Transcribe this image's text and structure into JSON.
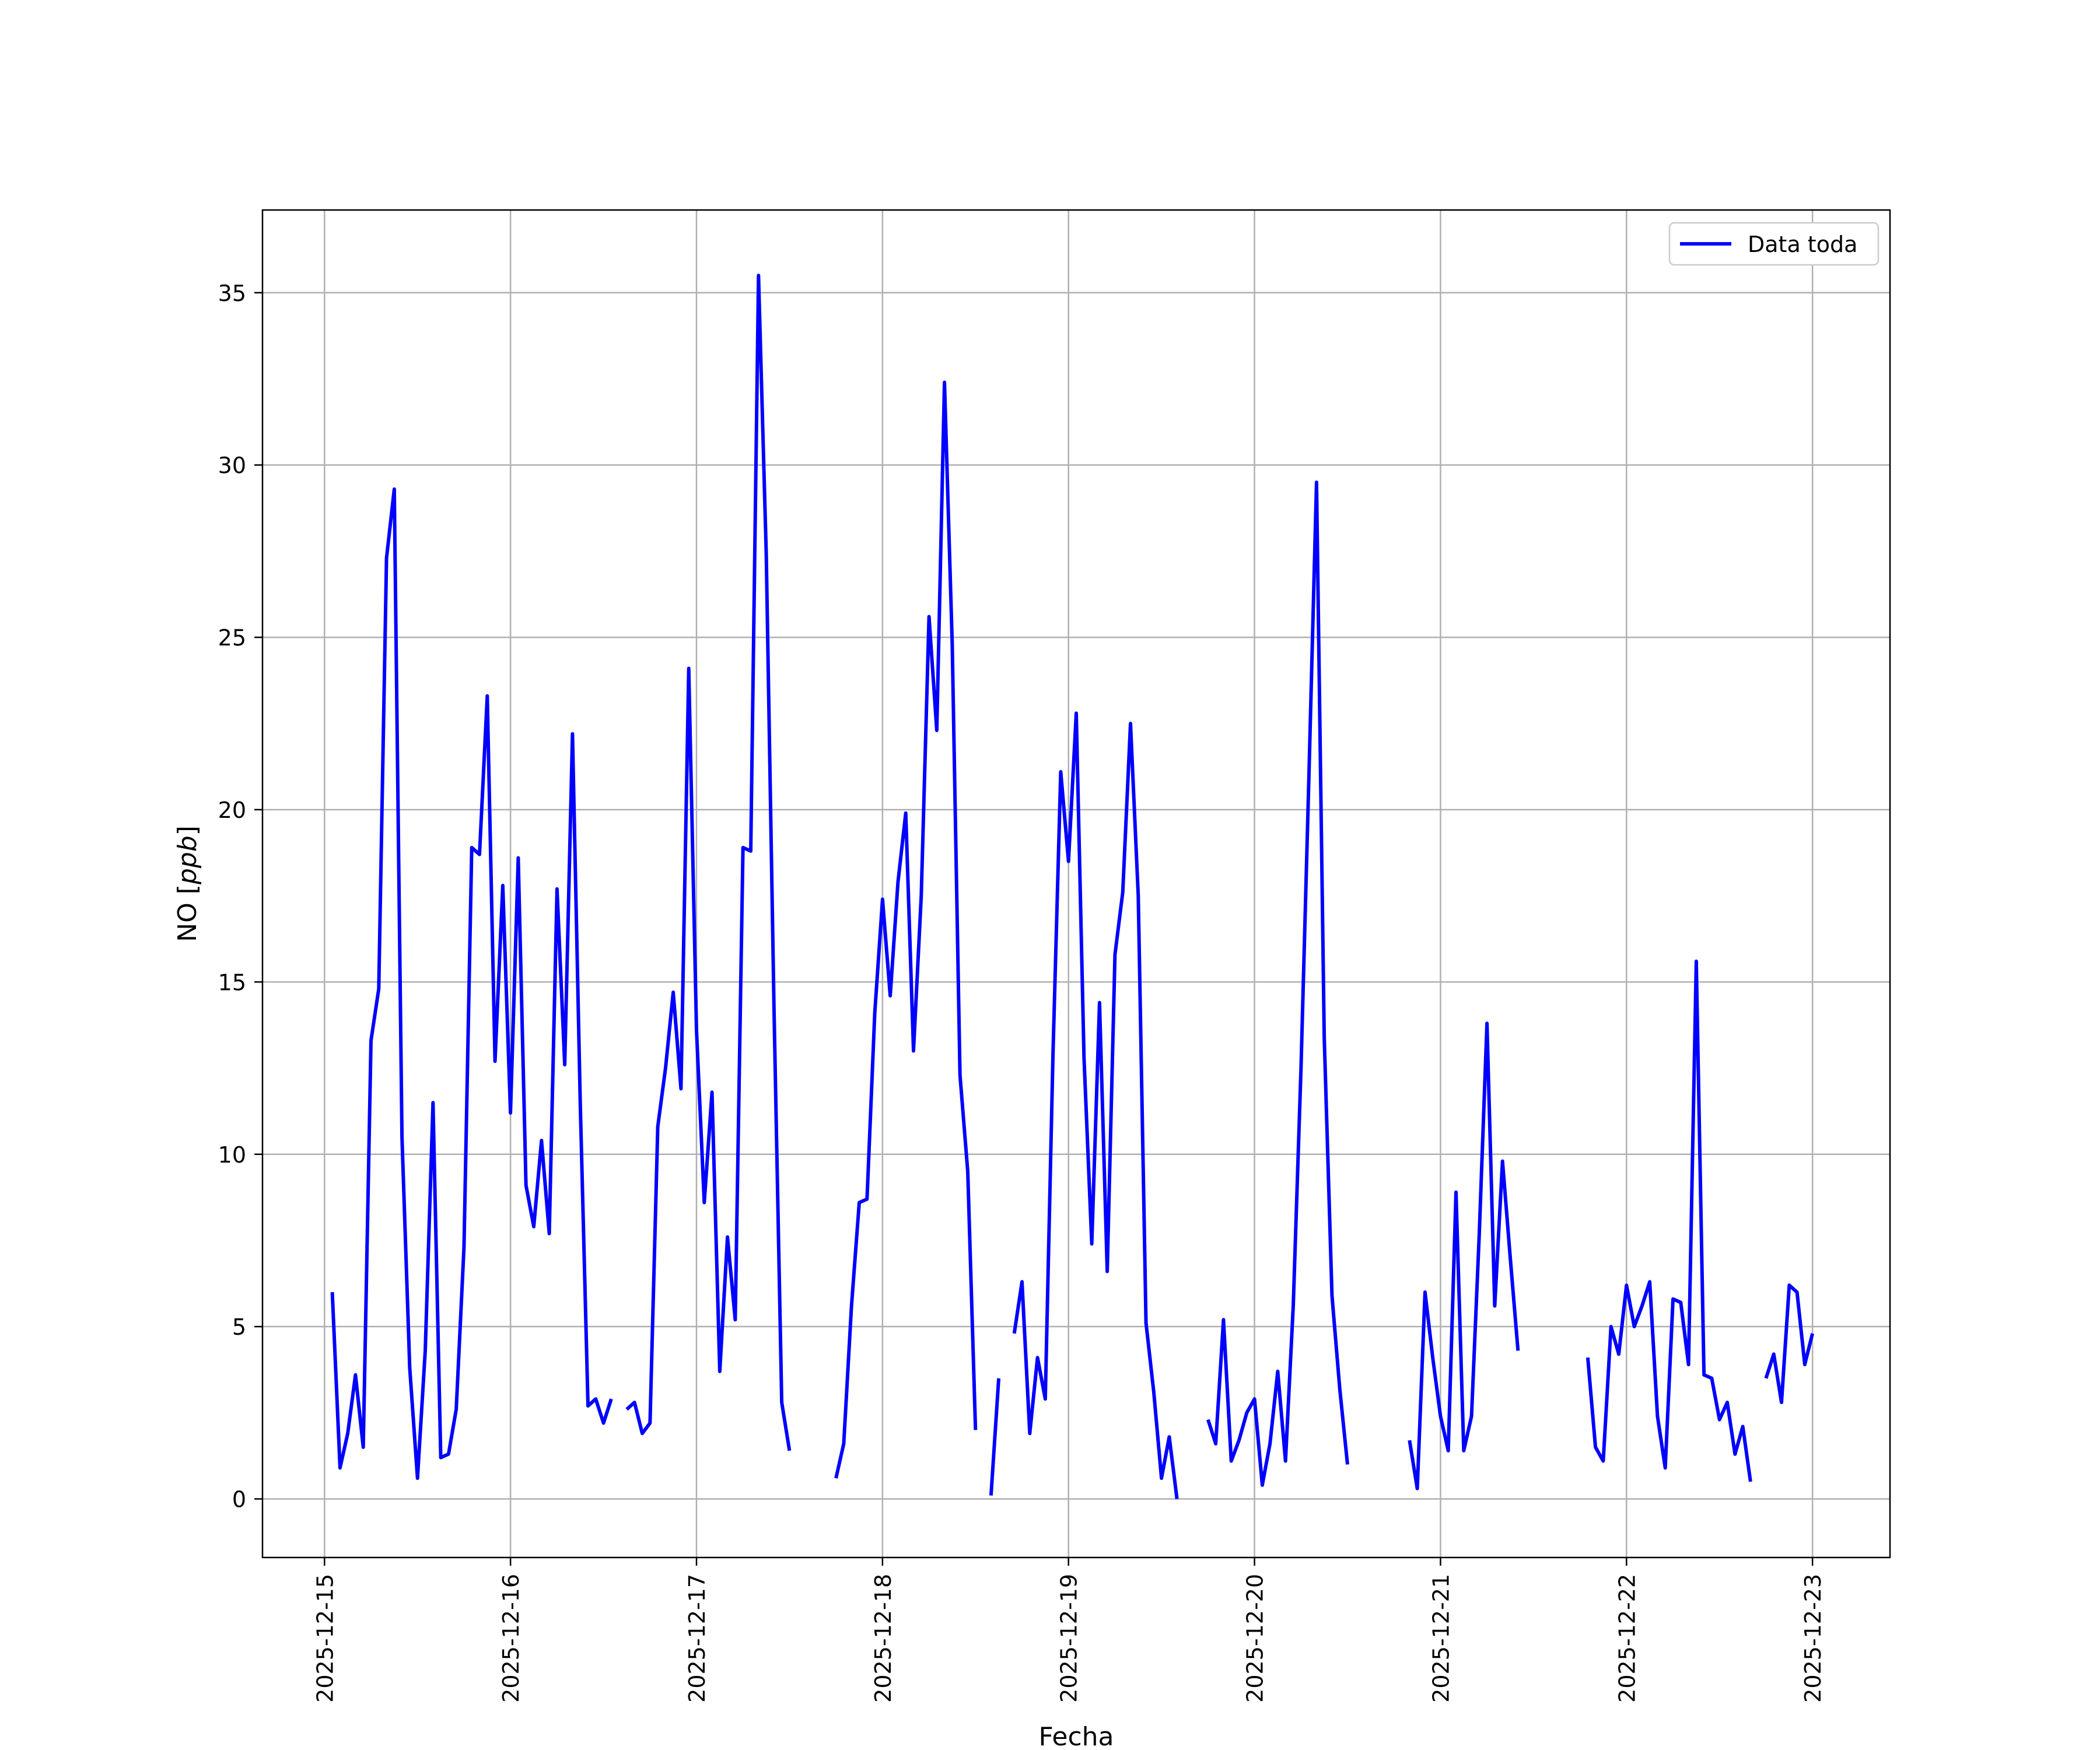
{
  "chart_data": {
    "type": "line",
    "title": "",
    "xlabel": "Fecha",
    "ylabel": "NO [ppb]",
    "ylabel_prefix": "NO [",
    "ylabel_unit": "ppb",
    "ylabel_suffix": "]",
    "xlim": [
      "2025-12-14T16:00",
      "2025-12-23T10:00"
    ],
    "ylim": [
      -1.7,
      37.4
    ],
    "x_ticks": [
      "2025-12-15",
      "2025-12-16",
      "2025-12-17",
      "2025-12-18",
      "2025-12-19",
      "2025-12-20",
      "2025-12-21",
      "2025-12-22",
      "2025-12-23"
    ],
    "y_ticks": [
      0,
      5,
      10,
      15,
      20,
      25,
      30,
      35
    ],
    "grid": true,
    "legend_position": "top-right",
    "series": [
      {
        "name": "Data toda",
        "color": "#0000ff",
        "segments": [
          [
            [
              "2025-12-15T01:00",
              6.0
            ],
            [
              "2025-12-15T02:00",
              0.9
            ],
            [
              "2025-12-15T03:00",
              1.9
            ],
            [
              "2025-12-15T04:00",
              3.6
            ],
            [
              "2025-12-15T05:00",
              1.5
            ],
            [
              "2025-12-15T06:00",
              13.3
            ],
            [
              "2025-12-15T07:00",
              14.8
            ],
            [
              "2025-12-15T08:00",
              27.3
            ],
            [
              "2025-12-15T09:00",
              29.3
            ],
            [
              "2025-12-15T10:00",
              10.5
            ],
            [
              "2025-12-15T11:00",
              3.8
            ],
            [
              "2025-12-15T12:00",
              0.6
            ],
            [
              "2025-12-15T13:00",
              4.3
            ],
            [
              "2025-12-15T14:00",
              11.5
            ],
            [
              "2025-12-15T15:00",
              1.2
            ],
            [
              "2025-12-15T16:00",
              1.3
            ],
            [
              "2025-12-15T17:00",
              2.6
            ],
            [
              "2025-12-15T18:00",
              7.3
            ],
            [
              "2025-12-15T19:00",
              18.9
            ],
            [
              "2025-12-15T20:00",
              18.7
            ],
            [
              "2025-12-15T21:00",
              23.3
            ],
            [
              "2025-12-15T22:00",
              12.7
            ],
            [
              "2025-12-15T23:00",
              17.8
            ],
            [
              "2025-12-16T00:00",
              11.2
            ],
            [
              "2025-12-16T01:00",
              18.6
            ],
            [
              "2025-12-16T02:00",
              9.1
            ],
            [
              "2025-12-16T03:00",
              7.9
            ],
            [
              "2025-12-16T04:00",
              10.4
            ],
            [
              "2025-12-16T05:00",
              7.7
            ],
            [
              "2025-12-16T06:00",
              17.7
            ],
            [
              "2025-12-16T07:00",
              12.6
            ],
            [
              "2025-12-16T08:00",
              22.2
            ],
            [
              "2025-12-16T09:00",
              11.5
            ],
            [
              "2025-12-16T10:00",
              2.7
            ],
            [
              "2025-12-16T11:00",
              2.9
            ],
            [
              "2025-12-16T12:00",
              2.2
            ],
            [
              "2025-12-16T13:00",
              2.9
            ]
          ],
          [
            [
              "2025-12-16T15:00",
              2.6
            ],
            [
              "2025-12-16T16:00",
              2.8
            ],
            [
              "2025-12-16T17:00",
              1.9
            ],
            [
              "2025-12-16T18:00",
              2.2
            ],
            [
              "2025-12-16T19:00",
              10.8
            ],
            [
              "2025-12-16T20:00",
              12.5
            ],
            [
              "2025-12-16T21:00",
              14.7
            ],
            [
              "2025-12-16T22:00",
              11.9
            ],
            [
              "2025-12-16T23:00",
              24.1
            ],
            [
              "2025-12-17T00:00",
              13.6
            ],
            [
              "2025-12-17T01:00",
              8.6
            ],
            [
              "2025-12-17T02:00",
              11.8
            ],
            [
              "2025-12-17T03:00",
              3.7
            ],
            [
              "2025-12-17T04:00",
              7.6
            ],
            [
              "2025-12-17T05:00",
              5.2
            ],
            [
              "2025-12-17T06:00",
              18.9
            ],
            [
              "2025-12-17T07:00",
              18.8
            ],
            [
              "2025-12-17T08:00",
              35.5
            ],
            [
              "2025-12-17T09:00",
              27.4
            ],
            [
              "2025-12-17T10:00",
              14.2
            ],
            [
              "2025-12-17T11:00",
              2.8
            ],
            [
              "2025-12-17T12:00",
              1.4
            ]
          ],
          [
            [
              "2025-12-17T18:00",
              0.6
            ],
            [
              "2025-12-17T19:00",
              1.6
            ],
            [
              "2025-12-17T20:00",
              5.6
            ],
            [
              "2025-12-17T21:00",
              8.6
            ],
            [
              "2025-12-17T22:00",
              8.7
            ],
            [
              "2025-12-17T23:00",
              14.1
            ],
            [
              "2025-12-18T00:00",
              17.4
            ],
            [
              "2025-12-18T01:00",
              14.6
            ],
            [
              "2025-12-18T02:00",
              17.9
            ],
            [
              "2025-12-18T03:00",
              19.9
            ],
            [
              "2025-12-18T04:00",
              13.0
            ],
            [
              "2025-12-18T05:00",
              17.5
            ],
            [
              "2025-12-18T06:00",
              25.6
            ],
            [
              "2025-12-18T07:00",
              22.3
            ],
            [
              "2025-12-18T08:00",
              32.4
            ],
            [
              "2025-12-18T09:00",
              24.8
            ],
            [
              "2025-12-18T10:00",
              12.3
            ],
            [
              "2025-12-18T11:00",
              9.5
            ],
            [
              "2025-12-18T12:00",
              2.0
            ]
          ],
          [
            [
              "2025-12-18T14:00",
              0.1
            ],
            [
              "2025-12-18T15:00",
              3.5
            ]
          ],
          [
            [
              "2025-12-18T17:00",
              4.8
            ],
            [
              "2025-12-18T18:00",
              6.3
            ],
            [
              "2025-12-18T19:00",
              1.9
            ],
            [
              "2025-12-18T20:00",
              4.1
            ],
            [
              "2025-12-18T21:00",
              2.9
            ],
            [
              "2025-12-18T22:00",
              12.9
            ],
            [
              "2025-12-18T23:00",
              21.1
            ],
            [
              "2025-12-19T00:00",
              18.5
            ],
            [
              "2025-12-19T01:00",
              22.8
            ],
            [
              "2025-12-19T02:00",
              12.8
            ],
            [
              "2025-12-19T03:00",
              7.4
            ],
            [
              "2025-12-19T04:00",
              14.4
            ],
            [
              "2025-12-19T05:00",
              6.6
            ],
            [
              "2025-12-19T06:00",
              15.8
            ],
            [
              "2025-12-19T07:00",
              17.6
            ],
            [
              "2025-12-19T08:00",
              22.5
            ],
            [
              "2025-12-19T09:00",
              17.5
            ],
            [
              "2025-12-19T10:00",
              5.1
            ],
            [
              "2025-12-19T11:00",
              3.1
            ],
            [
              "2025-12-19T12:00",
              0.6
            ],
            [
              "2025-12-19T13:00",
              1.8
            ],
            [
              "2025-12-19T14:00",
              0.0
            ]
          ],
          [
            [
              "2025-12-19T18:00",
              2.3
            ],
            [
              "2025-12-19T19:00",
              1.6
            ],
            [
              "2025-12-19T20:00",
              5.2
            ],
            [
              "2025-12-19T21:00",
              1.1
            ],
            [
              "2025-12-19T22:00",
              1.7
            ],
            [
              "2025-12-19T23:00",
              2.5
            ],
            [
              "2025-12-20T00:00",
              2.9
            ],
            [
              "2025-12-20T01:00",
              0.4
            ],
            [
              "2025-12-20T02:00",
              1.6
            ],
            [
              "2025-12-20T03:00",
              3.7
            ],
            [
              "2025-12-20T04:00",
              1.1
            ],
            [
              "2025-12-20T05:00",
              5.6
            ],
            [
              "2025-12-20T06:00",
              12.5
            ],
            [
              "2025-12-20T07:00",
              20.8
            ],
            [
              "2025-12-20T08:00",
              29.5
            ],
            [
              "2025-12-20T09:00",
              13.4
            ],
            [
              "2025-12-20T10:00",
              5.9
            ],
            [
              "2025-12-20T11:00",
              3.2
            ],
            [
              "2025-12-20T12:00",
              1.0
            ]
          ],
          [
            [
              "2025-12-20T20:00",
              1.7
            ],
            [
              "2025-12-20T21:00",
              0.3
            ],
            [
              "2025-12-20T22:00",
              6.0
            ],
            [
              "2025-12-20T23:00",
              4.1
            ],
            [
              "2025-12-21T00:00",
              2.4
            ],
            [
              "2025-12-21T01:00",
              1.4
            ],
            [
              "2025-12-21T02:00",
              8.9
            ],
            [
              "2025-12-21T03:00",
              1.4
            ],
            [
              "2025-12-21T04:00",
              2.4
            ],
            [
              "2025-12-21T05:00",
              7.7
            ],
            [
              "2025-12-21T06:00",
              13.8
            ],
            [
              "2025-12-21T07:00",
              5.6
            ],
            [
              "2025-12-21T08:00",
              9.8
            ],
            [
              "2025-12-21T09:00",
              7.0
            ],
            [
              "2025-12-21T10:00",
              4.3
            ]
          ],
          [
            [
              "2025-12-21T19:00",
              4.1
            ],
            [
              "2025-12-21T20:00",
              1.5
            ],
            [
              "2025-12-21T21:00",
              1.1
            ],
            [
              "2025-12-21T22:00",
              5.0
            ],
            [
              "2025-12-21T23:00",
              4.2
            ],
            [
              "2025-12-22T00:00",
              6.2
            ],
            [
              "2025-12-22T01:00",
              5.0
            ],
            [
              "2025-12-22T02:00",
              5.6
            ],
            [
              "2025-12-22T03:00",
              6.3
            ],
            [
              "2025-12-22T04:00",
              2.4
            ],
            [
              "2025-12-22T05:00",
              0.9
            ],
            [
              "2025-12-22T06:00",
              5.8
            ],
            [
              "2025-12-22T07:00",
              5.7
            ],
            [
              "2025-12-22T08:00",
              3.9
            ],
            [
              "2025-12-22T09:00",
              15.6
            ],
            [
              "2025-12-22T10:00",
              3.6
            ],
            [
              "2025-12-22T11:00",
              3.5
            ],
            [
              "2025-12-22T12:00",
              2.3
            ],
            [
              "2025-12-22T13:00",
              2.8
            ],
            [
              "2025-12-22T14:00",
              1.3
            ],
            [
              "2025-12-22T15:00",
              2.1
            ],
            [
              "2025-12-22T16:00",
              0.5
            ]
          ],
          [
            [
              "2025-12-22T18:00",
              3.5
            ],
            [
              "2025-12-22T19:00",
              4.2
            ],
            [
              "2025-12-22T20:00",
              2.8
            ],
            [
              "2025-12-22T21:00",
              6.2
            ],
            [
              "2025-12-22T22:00",
              6.0
            ],
            [
              "2025-12-22T23:00",
              3.9
            ],
            [
              "2025-12-23T00:00",
              4.8
            ]
          ]
        ]
      }
    ]
  }
}
